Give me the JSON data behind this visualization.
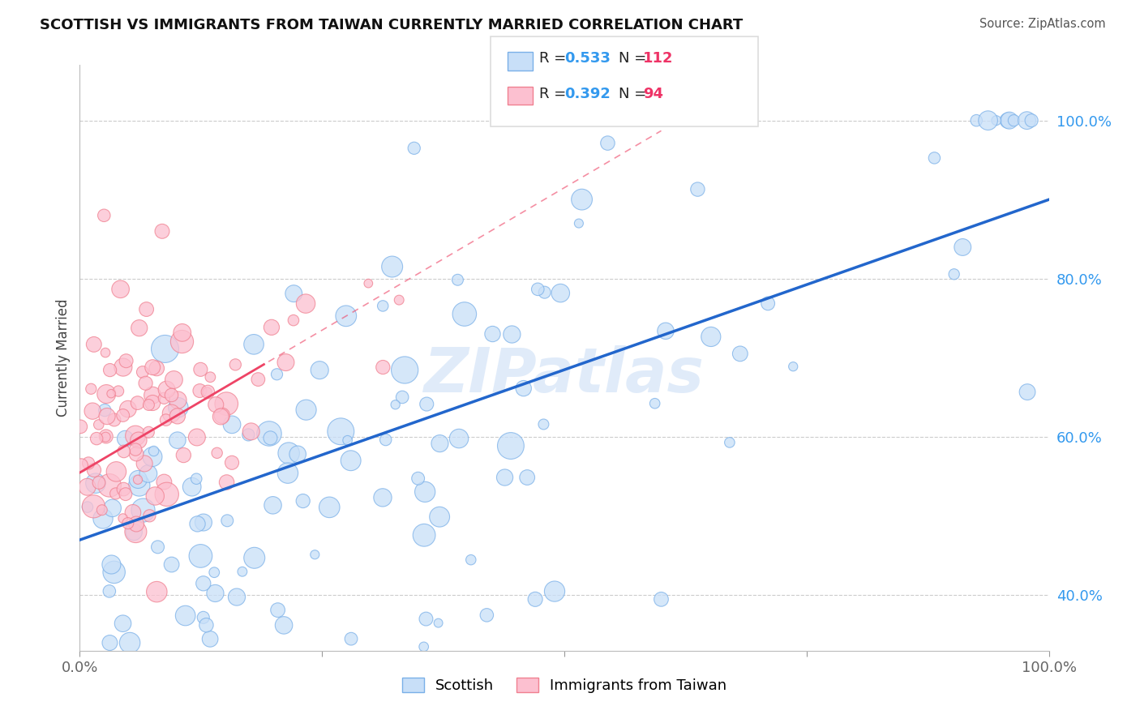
{
  "title": "SCOTTISH VS IMMIGRANTS FROM TAIWAN CURRENTLY MARRIED CORRELATION CHART",
  "source": "Source: ZipAtlas.com",
  "ylabel": "Currently Married",
  "xlim": [
    0.0,
    1.0
  ],
  "ylim": [
    0.33,
    1.07
  ],
  "y_tick_vals_right": [
    0.4,
    0.6,
    0.8,
    1.0
  ],
  "y_tick_labels_right": [
    "40.0%",
    "60.0%",
    "80.0%",
    "100.0%"
  ],
  "x_tick_labels": [
    "0.0%",
    "",
    "",
    "",
    "100.0%"
  ],
  "legend_r1_text": "R = ",
  "legend_r1_val": "0.533",
  "legend_n1_text": "N = ",
  "legend_n1_val": "112",
  "legend_r2_text": "R = ",
  "legend_r2_val": "0.392",
  "legend_n2_text": "N = ",
  "legend_n2_val": "94",
  "color_scottish_fill": "#c8dff8",
  "color_scottish_edge": "#7ab0e8",
  "color_taiwan_fill": "#fcc0d0",
  "color_taiwan_edge": "#f08090",
  "color_line_scottish": "#2266cc",
  "color_line_taiwan": "#ee4466",
  "color_grid": "#cccccc",
  "color_val_blue": "#3399ee",
  "color_val_red": "#ee3366",
  "watermark": "ZIPatlas",
  "legend_labels": [
    "Scottish",
    "Immigrants from Taiwan"
  ],
  "background_color": "#ffffff"
}
